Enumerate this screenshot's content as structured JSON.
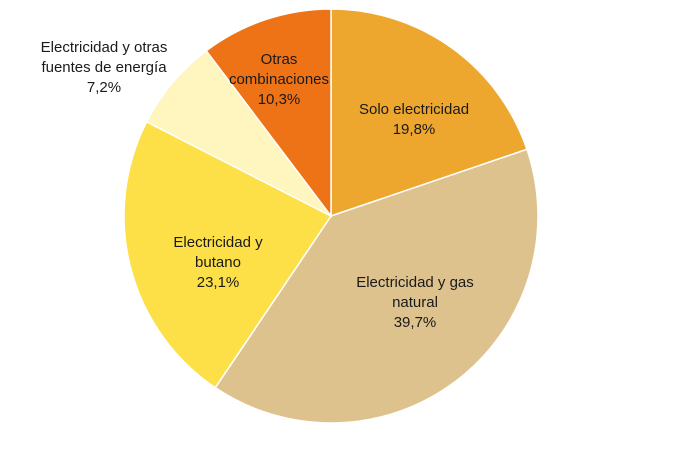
{
  "chart_data": {
    "type": "pie",
    "slices": [
      {
        "name": "Solo electricidad",
        "lines": [
          "Solo electricidad"
        ],
        "value_label": "19,8%",
        "value": 19.8,
        "color": "#EEA72E"
      },
      {
        "name": "Electricidad y gas natural",
        "lines": [
          "Electricidad y gas",
          "natural"
        ],
        "value_label": "39,7%",
        "value": 39.7,
        "color": "#DEC28D"
      },
      {
        "name": "Electricidad y butano",
        "lines": [
          "Electricidad y",
          "butano"
        ],
        "value_label": "23,1%",
        "value": 23.1,
        "color": "#FDE047"
      },
      {
        "name": "Electricidad y otras fuentes de energía",
        "lines": [
          "Electricidad y otras",
          "fuentes de energía"
        ],
        "value_label": "7,2%",
        "value": 7.2,
        "color": "#FFF5BE"
      },
      {
        "name": "Otras combinaciones",
        "lines": [
          "Otras",
          "combinaciones"
        ],
        "value_label": "10,3%",
        "value": 10.3,
        "color": "#EE7316"
      }
    ],
    "start": "12 o'clock",
    "direction": "clockwise",
    "slice_border_color": "#FFFFFF"
  }
}
